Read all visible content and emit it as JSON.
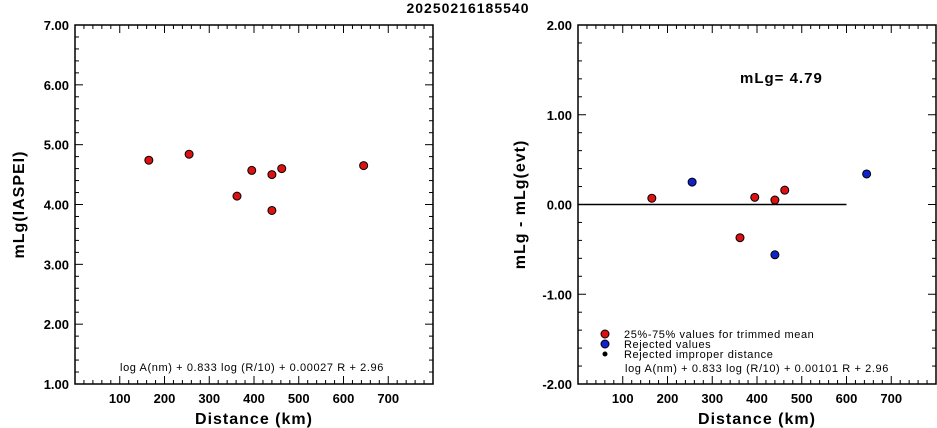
{
  "title": "20250216185540",
  "chart_data": [
    {
      "type": "scatter",
      "xlabel": "Distance (km)",
      "ylabel": "mLg(IASPEI)",
      "xlim": [
        0,
        800
      ],
      "ylim": [
        1.0,
        7.0
      ],
      "xticks": [
        "100",
        "200",
        "300",
        "400",
        "500",
        "600",
        "700"
      ],
      "yticks": [
        "1.00",
        "2.00",
        "3.00",
        "4.00",
        "5.00",
        "6.00",
        "7.00"
      ],
      "formula": "log A(nm) + 0.833 log (R/10) + 0.00027 R + 2.96",
      "series": [
        {
          "color": "#dd1111",
          "points": [
            [
              165,
              4.74
            ],
            [
              255,
              4.84
            ],
            [
              362,
              4.14
            ],
            [
              395,
              4.57
            ],
            [
              440,
              4.5
            ],
            [
              440,
              3.9
            ],
            [
              462,
              4.6
            ],
            [
              645,
              4.65
            ]
          ]
        }
      ]
    },
    {
      "type": "scatter",
      "xlabel": "Distance (km)",
      "ylabel": "mLg - mLg(evt)",
      "xlim": [
        0,
        800
      ],
      "ylim": [
        -2.0,
        2.0
      ],
      "xticks": [
        "100",
        "200",
        "300",
        "400",
        "500",
        "600",
        "700"
      ],
      "yticks": [
        "-2.00",
        "-1.00",
        "0.00",
        "1.00",
        "2.00"
      ],
      "annotation": "mLg= 4.79",
      "formula": "log A(nm) + 0.833 log (R/10) + 0.00101 R  + 2.96",
      "reference_line": {
        "y": 0.0,
        "x": [
          0,
          600
        ]
      },
      "legend": [
        {
          "label": "25%-75% values for trimmed mean",
          "color": "#dd1111"
        },
        {
          "label": "Rejected values",
          "color": "#1122cc"
        },
        {
          "label": "Rejected improper distance",
          "color": "#000000"
        }
      ],
      "series": [
        {
          "color": "#dd1111",
          "points": [
            [
              165,
              0.07
            ],
            [
              395,
              0.08
            ],
            [
              440,
              0.05
            ],
            [
              462,
              0.16
            ],
            [
              362,
              -0.37
            ]
          ]
        },
        {
          "color": "#1122cc",
          "points": [
            [
              255,
              0.25
            ],
            [
              440,
              -0.56
            ],
            [
              645,
              0.34
            ]
          ]
        }
      ]
    }
  ]
}
